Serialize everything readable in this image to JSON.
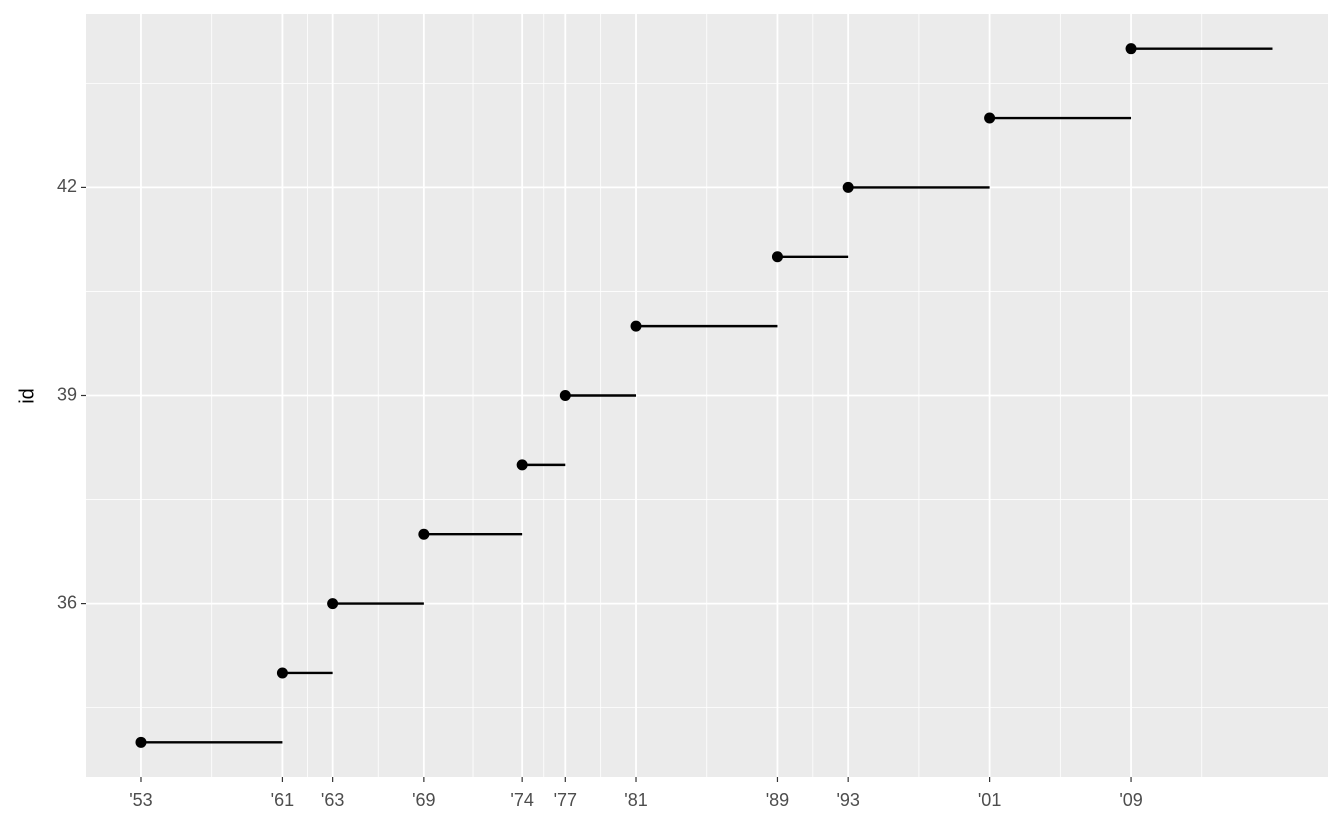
{
  "chart_data": {
    "type": "segment",
    "y_label": "id",
    "y": [
      34,
      35,
      36,
      37,
      38,
      39,
      40,
      41,
      42,
      43,
      44
    ],
    "start": [
      1953.05,
      1961.05,
      1963.89,
      1969.05,
      1974.61,
      1977.05,
      1981.05,
      1989.05,
      1993.05,
      2001.05,
      2009.05
    ],
    "end": [
      1961.05,
      1963.89,
      1969.05,
      1974.61,
      1977.05,
      1981.05,
      1989.05,
      1993.05,
      2001.05,
      2009.05,
      2017.05
    ],
    "color": "#000000",
    "xlim": [
      1949.94,
      2020.19
    ],
    "ylim": [
      33.5,
      44.5
    ],
    "xticks": [
      {
        "value": 1953.05,
        "label": "'53"
      },
      {
        "value": 1961.05,
        "label": "'61"
      },
      {
        "value": 1963.89,
        "label": "'63"
      },
      {
        "value": 1969.05,
        "label": "'69"
      },
      {
        "value": 1974.61,
        "label": "'74"
      },
      {
        "value": 1977.05,
        "label": "'77"
      },
      {
        "value": 1981.05,
        "label": "'81"
      },
      {
        "value": 1989.05,
        "label": "'89"
      },
      {
        "value": 1993.05,
        "label": "'93"
      },
      {
        "value": 2001.05,
        "label": "'01"
      },
      {
        "value": 2009.05,
        "label": "'09"
      }
    ],
    "yticks": [
      36,
      39,
      42
    ],
    "grid": true
  }
}
